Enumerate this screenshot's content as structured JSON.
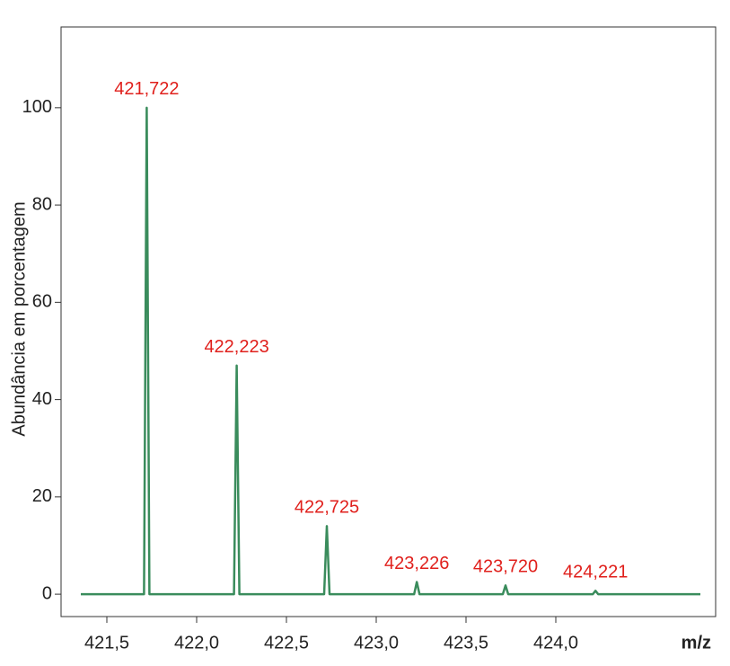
{
  "chart_data": {
    "type": "line",
    "x_label": "m/z",
    "y_label": "Abundância em porcentagem",
    "color": "#3a8c5c",
    "xlim": [
      421.245,
      424.89
    ],
    "ylim": [
      -4.6,
      116.6
    ],
    "xticks": [
      {
        "value": 421.5,
        "label": "421,5"
      },
      {
        "value": 422.0,
        "label": "422,0"
      },
      {
        "value": 422.5,
        "label": "422,5"
      },
      {
        "value": 423.0,
        "label": "423,0"
      },
      {
        "value": 423.5,
        "label": "423,5"
      },
      {
        "value": 424.0,
        "label": "424,0"
      }
    ],
    "yticks": [
      0,
      20,
      40,
      60,
      80,
      100
    ],
    "x": [
      421.355,
      421.707,
      421.722,
      421.737,
      422.208,
      422.223,
      422.238,
      422.71,
      422.725,
      422.74,
      423.211,
      423.226,
      423.241,
      423.705,
      423.72,
      423.735,
      424.206,
      424.221,
      424.236,
      424.805
    ],
    "values": [
      0,
      0,
      100,
      0,
      0,
      47,
      0,
      0,
      14,
      0,
      0,
      2.5,
      0,
      0,
      1.8,
      0,
      0,
      0.7,
      0,
      0
    ],
    "annotations": [
      {
        "text": "421,722",
        "x": 421.722,
        "y": 100
      },
      {
        "text": "422,223",
        "x": 422.223,
        "y": 47
      },
      {
        "text": "422,725",
        "x": 422.725,
        "y": 14
      },
      {
        "text": "423,226",
        "x": 423.226,
        "y": 2.5
      },
      {
        "text": "423,720",
        "x": 423.72,
        "y": 1.8
      },
      {
        "text": "424,221",
        "x": 424.221,
        "y": 0.7
      }
    ]
  }
}
